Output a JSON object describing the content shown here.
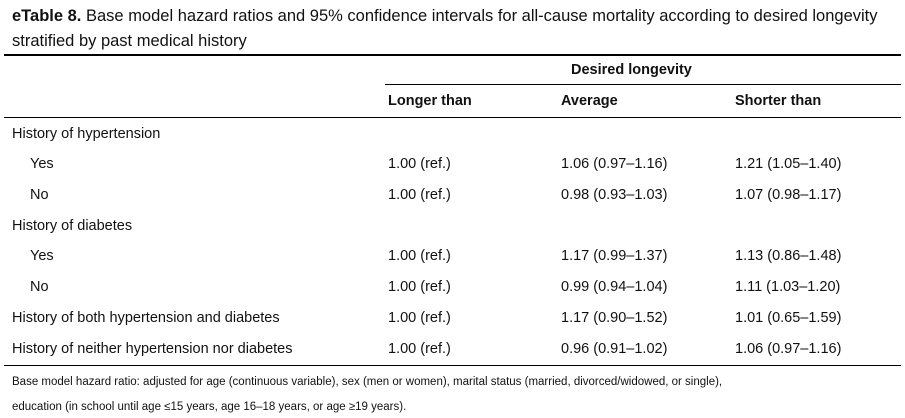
{
  "caption": {
    "label": "eTable 8.",
    "text": "Base model hazard ratios and 95% confidence intervals for all-cause mortality according to desired longevity stratified by past medical history"
  },
  "header": {
    "group": "Desired longevity",
    "columns": [
      "Longer than",
      "Average",
      "Shorter than"
    ]
  },
  "rows": [
    {
      "label": "History of hypertension",
      "indent": false,
      "values": [
        "",
        "",
        ""
      ]
    },
    {
      "label": "Yes",
      "indent": true,
      "values": [
        "1.00 (ref.)",
        "1.06 (0.97–1.16)",
        "1.21 (1.05–1.40)"
      ]
    },
    {
      "label": "No",
      "indent": true,
      "values": [
        "1.00 (ref.)",
        "0.98 (0.93–1.03)",
        "1.07 (0.98–1.17)"
      ]
    },
    {
      "label": "History of diabetes",
      "indent": false,
      "values": [
        "",
        "",
        ""
      ]
    },
    {
      "label": "Yes",
      "indent": true,
      "values": [
        "1.00 (ref.)",
        "1.17 (0.99–1.37)",
        "1.13 (0.86–1.48)"
      ]
    },
    {
      "label": "No",
      "indent": true,
      "values": [
        "1.00 (ref.)",
        "0.99 (0.94–1.04)",
        "1.11 (1.03–1.20)"
      ]
    },
    {
      "label": "History of both hypertension and diabetes",
      "indent": false,
      "values": [
        "1.00 (ref.)",
        "1.17 (0.90–1.52)",
        "1.01 (0.65–1.59)"
      ]
    },
    {
      "label": "History of neither hypertension nor diabetes",
      "indent": false,
      "values": [
        "1.00 (ref.)",
        "0.96 (0.91–1.02)",
        "1.06 (0.97–1.16)"
      ]
    }
  ],
  "footnote": {
    "line1": "Base model hazard ratio: adjusted for age (continuous variable), sex (men or women), marital status (married, divorced/widowed, or single),",
    "line2": "education (in school until age ≤15 years, age 16–18 years, or age ≥19 years)."
  }
}
